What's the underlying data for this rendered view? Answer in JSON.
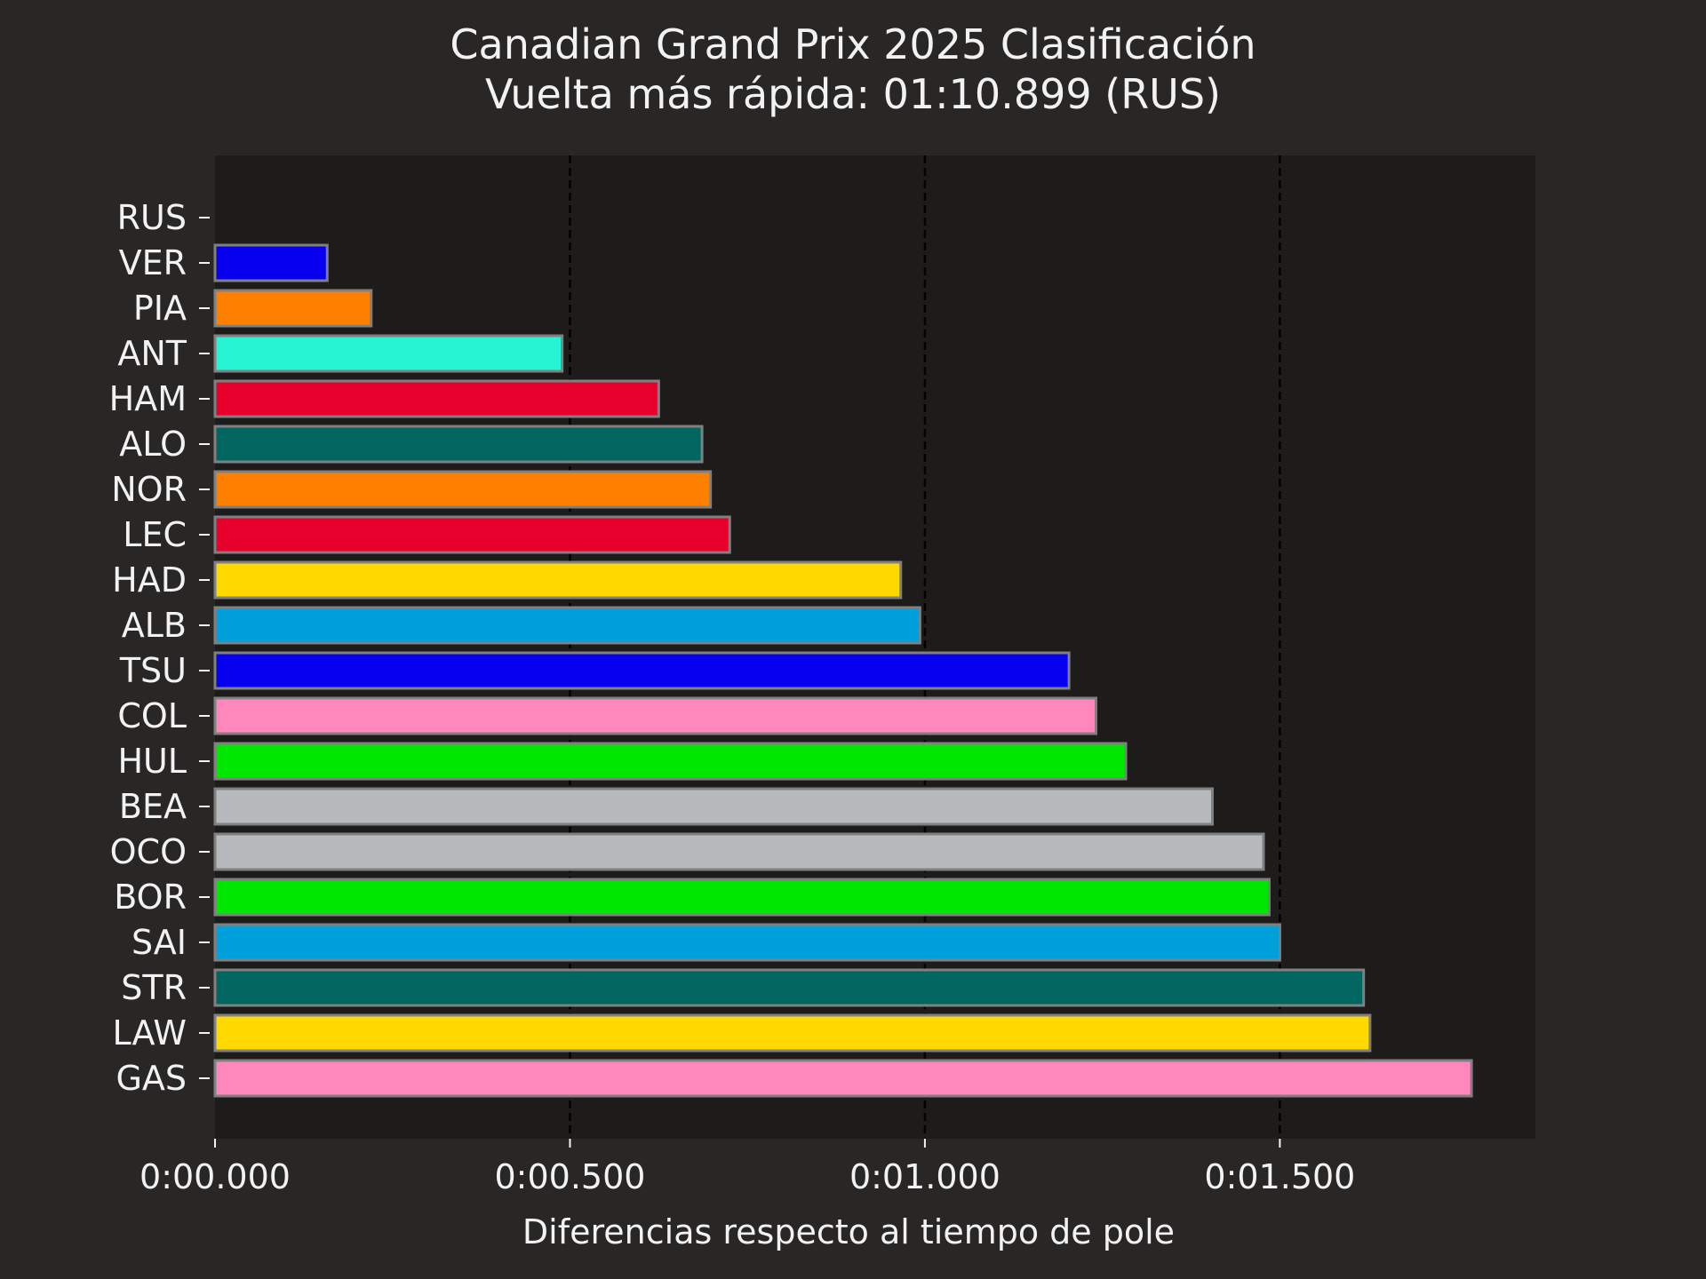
{
  "chart_data": {
    "type": "bar",
    "orientation": "horizontal",
    "title": "Canadian Grand Prix 2025 Clasificación",
    "subtitle": "Vuelta más rápida: 01:10.899 (RUS)",
    "xlabel": "Diferencias respecto al tiempo de pole",
    "ylabel": "",
    "xlim": [
      0,
      1.86
    ],
    "x_ticks": [
      {
        "value": 0,
        "label": "0:00.000"
      },
      {
        "value": 0.5,
        "label": "0:00.500"
      },
      {
        "value": 1.0,
        "label": "0:01.000"
      },
      {
        "value": 1.5,
        "label": "0:01.500"
      }
    ],
    "grid": {
      "x": true,
      "style": "dashed",
      "color": "#000000"
    },
    "colors": {
      "page_background": "#292726",
      "plot_background": "#1e1c1b",
      "text": "#f2f2f2",
      "bar_edge": "#808080"
    },
    "categories": [
      "RUS",
      "VER",
      "PIA",
      "ANT",
      "HAM",
      "ALO",
      "NOR",
      "LEC",
      "HAD",
      "ALB",
      "TSU",
      "COL",
      "HUL",
      "BEA",
      "OCO",
      "BOR",
      "SAI",
      "STR",
      "LAW",
      "GAS"
    ],
    "values": [
      0.0,
      0.158,
      0.22,
      0.489,
      0.625,
      0.686,
      0.698,
      0.725,
      0.966,
      0.993,
      1.203,
      1.241,
      1.283,
      1.405,
      1.477,
      1.485,
      1.5,
      1.618,
      1.627,
      1.77
    ],
    "bar_colors": [
      "#27f4d2",
      "#0600ef",
      "#ff8000",
      "#27f4d2",
      "#e8002d",
      "#00665f",
      "#ff8000",
      "#e8002d",
      "#ffd800",
      "#00a0dd",
      "#0600ef",
      "#ff87bc",
      "#00e701",
      "#b6babd",
      "#b6babd",
      "#00e701",
      "#00a0dd",
      "#00665f",
      "#ffd800",
      "#ff87bc"
    ]
  }
}
